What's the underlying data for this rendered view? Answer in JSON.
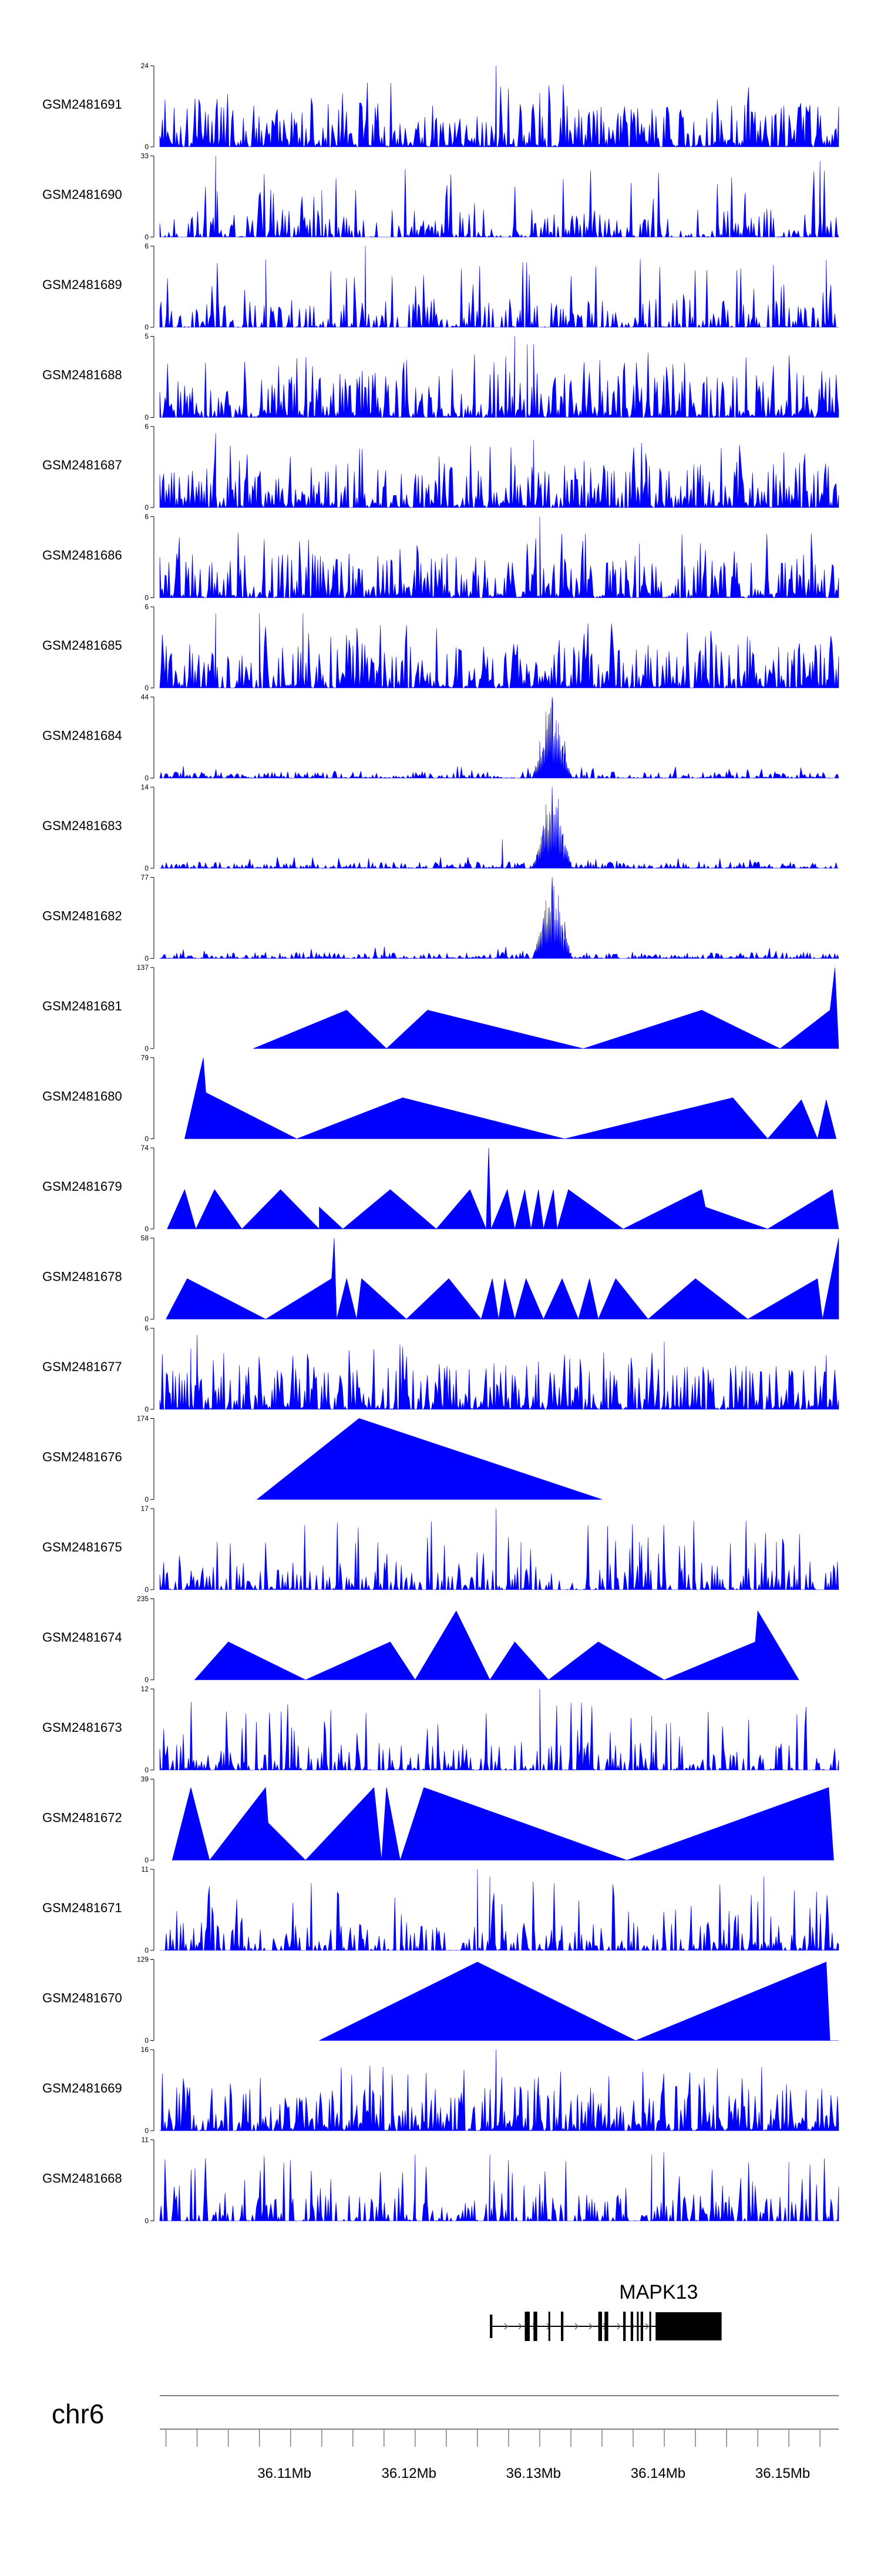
{
  "colors": {
    "signal": "#0000ff",
    "axis": "#000000",
    "gene": "#000000",
    "ruler": "#808080"
  },
  "chart_data": {
    "type": "area",
    "chromosome": "chr6",
    "x_range_mb": [
      36.1,
      36.1545
    ],
    "x_ticks_mb": [
      36.11,
      36.12,
      36.13,
      36.14,
      36.15
    ],
    "x_tick_labels": [
      "36.11Mb",
      "36.12Mb",
      "36.13Mb",
      "36.14Mb",
      "36.15Mb"
    ],
    "tracks": [
      {
        "name": "GSM2481691",
        "ymax": 24,
        "style": "dense",
        "peaks": [
          [
            36.127,
            24
          ],
          [
            36.1305,
            16
          ],
          [
            36.1335,
            6
          ],
          [
            36.1405,
            5
          ]
        ]
      },
      {
        "name": "GSM2481690",
        "ymax": 33,
        "style": "sparse",
        "peaks": [
          [
            36.1045,
            33
          ],
          [
            36.153,
            31
          ],
          [
            36.113,
            19
          ],
          [
            36.147,
            18
          ]
        ]
      },
      {
        "name": "GSM2481689",
        "ymax": 6,
        "style": "sparse",
        "peaks": [
          [
            36.1085,
            5
          ],
          [
            36.1165,
            6
          ],
          [
            36.1535,
            5
          ]
        ]
      },
      {
        "name": "GSM2481688",
        "ymax": 5,
        "style": "dense",
        "peaks": [
          [
            36.1285,
            5
          ],
          [
            36.13,
            4.5
          ],
          [
            36.1295,
            4.5
          ]
        ]
      },
      {
        "name": "GSM2481687",
        "ymax": 6,
        "style": "dense",
        "peaks": [
          [
            36.1045,
            5.5
          ],
          [
            36.13,
            5
          ],
          [
            36.139,
            4
          ]
        ]
      },
      {
        "name": "GSM2481686",
        "ymax": 6,
        "style": "dense",
        "peaks": [
          [
            36.1305,
            6
          ],
          [
            36.1295,
            4
          ],
          [
            36.1385,
            4
          ]
        ]
      },
      {
        "name": "GSM2481685",
        "ymax": 6,
        "style": "dense",
        "peaks": [
          [
            36.1045,
            5.5
          ],
          [
            36.108,
            5.5
          ],
          [
            36.1115,
            5.5
          ]
        ]
      },
      {
        "name": "GSM2481684",
        "ymax": 44,
        "style": "peak",
        "peaks": [
          [
            36.1315,
            44
          ],
          [
            36.131,
            36
          ],
          [
            36.132,
            30
          ],
          [
            36.1325,
            20
          ],
          [
            36.1305,
            20
          ]
        ]
      },
      {
        "name": "GSM2481683",
        "ymax": 14,
        "style": "peak",
        "peaks": [
          [
            36.1315,
            14
          ],
          [
            36.132,
            12
          ],
          [
            36.131,
            11
          ],
          [
            36.1275,
            5
          ]
        ]
      },
      {
        "name": "GSM2481682",
        "ymax": 77,
        "style": "peak",
        "peaks": [
          [
            36.1315,
            77
          ],
          [
            36.132,
            60
          ],
          [
            36.131,
            55
          ],
          [
            36.1325,
            35
          ]
        ]
      },
      {
        "name": "GSM2481681",
        "ymax": 137,
        "style": "triangles",
        "peaks": [
          [
            36.1075,
            0
          ],
          [
            36.115,
            65
          ],
          [
            36.1182,
            0
          ],
          [
            36.1215,
            65
          ],
          [
            36.134,
            0
          ],
          [
            36.1435,
            65
          ],
          [
            36.1498,
            0
          ],
          [
            36.1538,
            65
          ],
          [
            36.1542,
            137
          ],
          [
            36.1545,
            0
          ]
        ]
      },
      {
        "name": "GSM2481680",
        "ymax": 79,
        "style": "triangles",
        "peaks": [
          [
            36.102,
            0
          ],
          [
            36.1035,
            79
          ],
          [
            36.1037,
            45
          ],
          [
            36.111,
            0
          ],
          [
            36.1195,
            40
          ],
          [
            36.1325,
            0
          ],
          [
            36.146,
            40
          ],
          [
            36.1488,
            0
          ],
          [
            36.1515,
            38
          ],
          [
            36.1528,
            0
          ],
          [
            36.1535,
            38
          ],
          [
            36.1543,
            0
          ]
        ]
      },
      {
        "name": "GSM2481679",
        "ymax": 74,
        "style": "triangles",
        "peaks": [
          [
            36.1006,
            0
          ],
          [
            36.102,
            36
          ],
          [
            36.1029,
            0
          ],
          [
            36.1044,
            36
          ],
          [
            36.1066,
            0
          ],
          [
            36.1097,
            36
          ],
          [
            36.1128,
            0
          ],
          [
            36.1128,
            20
          ],
          [
            36.1147,
            0
          ],
          [
            36.1185,
            36
          ],
          [
            36.1222,
            0
          ],
          [
            36.1249,
            36
          ],
          [
            36.1262,
            0
          ],
          [
            36.1264,
            74
          ],
          [
            36.1266,
            0
          ],
          [
            36.1279,
            36
          ],
          [
            36.1285,
            0
          ],
          [
            36.1293,
            36
          ],
          [
            36.1298,
            0
          ],
          [
            36.1304,
            36
          ],
          [
            36.1308,
            0
          ],
          [
            36.1316,
            36
          ],
          [
            36.1319,
            0
          ],
          [
            36.1328,
            36
          ],
          [
            36.1372,
            0
          ],
          [
            36.1435,
            36
          ],
          [
            36.1438,
            20
          ],
          [
            36.1488,
            0
          ],
          [
            36.154,
            36
          ],
          [
            36.1545,
            0
          ]
        ]
      },
      {
        "name": "GSM2481678",
        "ymax": 58,
        "style": "triangles",
        "peaks": [
          [
            36.1005,
            0
          ],
          [
            36.1022,
            29
          ],
          [
            36.1085,
            0
          ],
          [
            36.1138,
            29
          ],
          [
            36.114,
            58
          ],
          [
            36.1142,
            0
          ],
          [
            36.115,
            29
          ],
          [
            36.1158,
            0
          ],
          [
            36.1162,
            29
          ],
          [
            36.1198,
            0
          ],
          [
            36.1232,
            29
          ],
          [
            36.1258,
            0
          ],
          [
            36.1267,
            29
          ],
          [
            36.1272,
            0
          ],
          [
            36.1277,
            29
          ],
          [
            36.1285,
            0
          ],
          [
            36.1294,
            29
          ],
          [
            36.1308,
            0
          ],
          [
            36.1323,
            29
          ],
          [
            36.1336,
            0
          ],
          [
            36.1345,
            29
          ],
          [
            36.1352,
            0
          ],
          [
            36.1366,
            29
          ],
          [
            36.1392,
            0
          ],
          [
            36.143,
            29
          ],
          [
            36.1472,
            0
          ],
          [
            36.1528,
            29
          ],
          [
            36.1532,
            0
          ],
          [
            36.1545,
            58
          ]
        ]
      },
      {
        "name": "GSM2481677",
        "ymax": 6,
        "style": "dense",
        "peaks": [
          [
            36.103,
            5.5
          ],
          [
            36.1025,
            4.5
          ],
          [
            36.1405,
            5
          ],
          [
            36.1535,
            4
          ]
        ]
      },
      {
        "name": "GSM2481676",
        "ymax": 174,
        "style": "triangles",
        "peaks": [
          [
            36.1078,
            0
          ],
          [
            36.116,
            174
          ],
          [
            36.1355,
            0
          ]
        ]
      },
      {
        "name": "GSM2481675",
        "ymax": 17,
        "style": "sparse",
        "peaks": [
          [
            36.127,
            17
          ],
          [
            36.129,
            10
          ],
          [
            36.1385,
            10
          ],
          [
            36.1495,
            10
          ]
        ]
      },
      {
        "name": "GSM2481674",
        "ymax": 235,
        "style": "triangles",
        "peaks": [
          [
            36.1028,
            0
          ],
          [
            36.1055,
            110
          ],
          [
            36.1117,
            0
          ],
          [
            36.1185,
            110
          ],
          [
            36.1205,
            0
          ],
          [
            36.1238,
            200
          ],
          [
            36.1265,
            0
          ],
          [
            36.1285,
            110
          ],
          [
            36.1312,
            0
          ],
          [
            36.1352,
            110
          ],
          [
            36.1405,
            0
          ],
          [
            36.1478,
            110
          ],
          [
            36.148,
            200
          ],
          [
            36.1513,
            0
          ]
        ]
      },
      {
        "name": "GSM2481673",
        "ymax": 12,
        "style": "sparse",
        "peaks": [
          [
            36.1305,
            12
          ],
          [
            36.1395,
            8
          ],
          [
            36.141,
            7
          ]
        ]
      },
      {
        "name": "GSM2481672",
        "ymax": 39,
        "style": "triangles",
        "peaks": [
          [
            36.101,
            0
          ],
          [
            36.1025,
            35
          ],
          [
            36.104,
            0
          ],
          [
            36.1085,
            35
          ],
          [
            36.1087,
            18
          ],
          [
            36.1117,
            0
          ],
          [
            36.1172,
            35
          ],
          [
            36.1178,
            0
          ],
          [
            36.1182,
            35
          ],
          [
            36.1193,
            0
          ],
          [
            36.1212,
            35
          ],
          [
            36.1375,
            0
          ],
          [
            36.1537,
            35
          ],
          [
            36.1541,
            0
          ]
        ]
      },
      {
        "name": "GSM2481671",
        "ymax": 11,
        "style": "sparse",
        "peaks": [
          [
            36.1255,
            11
          ],
          [
            36.1265,
            10
          ],
          [
            36.1485,
            10
          ]
        ]
      },
      {
        "name": "GSM2481670",
        "ymax": 129,
        "style": "triangles",
        "peaks": [
          [
            36.1128,
            0
          ],
          [
            36.1255,
            125
          ],
          [
            36.1382,
            0
          ],
          [
            36.1535,
            125
          ],
          [
            36.1538,
            0
          ],
          [
            36.1545,
            0
          ]
        ]
      },
      {
        "name": "GSM2481669",
        "ymax": 16,
        "style": "dense",
        "peaks": [
          [
            36.127,
            16
          ],
          [
            36.1305,
            7
          ],
          [
            36.1335,
            6
          ]
        ]
      },
      {
        "name": "GSM2481668",
        "ymax": 11,
        "style": "sparse",
        "peaks": [
          [
            36.1205,
            9
          ],
          [
            36.1265,
            9
          ],
          [
            36.1395,
            9
          ],
          [
            36.1505,
            8
          ]
        ]
      }
    ],
    "gene": {
      "name": "MAPK13",
      "start_mb": 36.1265,
      "end_mb": 36.1451,
      "thick_start_mb": 36.1398,
      "exons_mb": [
        [
          36.1265,
          36.1267
        ],
        [
          36.1293,
          36.1297
        ],
        [
          36.13,
          36.1303
        ],
        [
          36.1312,
          36.1313
        ],
        [
          36.1322,
          36.1324
        ],
        [
          36.1352,
          36.1355
        ],
        [
          36.1357,
          36.136
        ],
        [
          36.1372,
          36.1374
        ],
        [
          36.1378,
          36.138
        ],
        [
          36.1383,
          36.1384
        ],
        [
          36.1386,
          36.1388
        ],
        [
          36.1393,
          36.1394
        ]
      ]
    }
  }
}
